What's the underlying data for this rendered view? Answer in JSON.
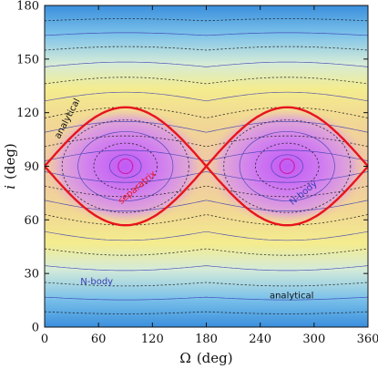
{
  "chart_data": {
    "type": "line",
    "subtype": "contour",
    "title": "",
    "xlabel": {
      "symbol": "Ω",
      "unit": "(deg)"
    },
    "ylabel": {
      "symbol": "i",
      "unit": "(deg)"
    },
    "xlim": [
      0,
      360
    ],
    "ylim": [
      0,
      180
    ],
    "xticks": [
      0,
      60,
      120,
      180,
      240,
      300,
      360
    ],
    "yticks": [
      0,
      30,
      60,
      90,
      120,
      150,
      180
    ],
    "grid": false,
    "legend": "none",
    "background": "filled-contour",
    "colors": {
      "separatrix": "#e8141c",
      "centers": "#d01aa8",
      "solid_contour": "#3c3cb4",
      "dashed_contour": "#141414",
      "colormap_low": "#2f8fe0",
      "colormap_mid": "#f2ea8c",
      "colormap_high": "#c060f0"
    },
    "separatrix": {
      "x": [
        0,
        90,
        180,
        270,
        360
      ],
      "y_upper": [
        90,
        123,
        90,
        123,
        90
      ],
      "y_lower": [
        90,
        57,
        90,
        57,
        90
      ]
    },
    "libration_centers": [
      {
        "x": 90,
        "y": 90
      },
      {
        "x": 270,
        "y": 90
      }
    ],
    "circulating_levels_upper": [
      96,
      104,
      112,
      120,
      129,
      138,
      147,
      156,
      164,
      172
    ],
    "circulating_levels_lower": [
      84,
      76,
      68,
      60,
      51,
      42,
      33,
      24,
      16,
      8
    ],
    "libration_radius_fractions": [
      0.2,
      0.4,
      0.6,
      0.8
    ],
    "annotations": [
      {
        "text": "analytical",
        "x": 28,
        "y": 116,
        "rotate": -62,
        "color": "#111111"
      },
      {
        "text": "separatrix",
        "x": 105,
        "y": 77,
        "rotate": -40,
        "color": "#e8141c"
      },
      {
        "text": "N-body",
        "x": 290,
        "y": 74,
        "rotate": -40,
        "color": "#3c3cb4"
      },
      {
        "text": "N-body",
        "x": 58,
        "y": 24,
        "rotate": 0,
        "color": "#3c3cb4"
      },
      {
        "text": "analytical",
        "x": 275,
        "y": 16,
        "rotate": 0,
        "color": "#111111"
      }
    ]
  }
}
